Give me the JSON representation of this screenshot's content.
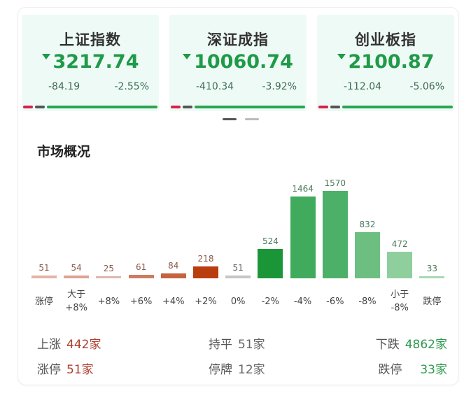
{
  "indices": [
    {
      "name": "上证指数",
      "price": "3217.74",
      "change": "-84.19",
      "change_pct": "-2.55%"
    },
    {
      "name": "深证成指",
      "price": "10060.74",
      "change": "-410.34",
      "change_pct": "-3.92%"
    },
    {
      "name": "创业板指",
      "price": "2100.87",
      "change": "-112.04",
      "change_pct": "-5.06%"
    }
  ],
  "colors": {
    "down_green": "#1f9a48",
    "up_red": "#c0392b",
    "card_bg": "#eefaf6",
    "strip_red": "#d6204a",
    "strip_gray": "#555555",
    "strip_green": "#2aa552"
  },
  "pager": {
    "active": 0,
    "count": 2
  },
  "section": {
    "title": "市场概况"
  },
  "chart_data": {
    "type": "bar",
    "title": "市场概况",
    "xlabel": "",
    "ylabel": "",
    "categories": [
      "涨停",
      "大于 +8%",
      "+8%",
      "+6%",
      "+4%",
      "+2%",
      "0%",
      "-2%",
      "-4%",
      "-6%",
      "-8%",
      "小于 -8%",
      "跌停"
    ],
    "values": [
      51,
      54,
      25,
      61,
      84,
      218,
      51,
      524,
      1464,
      1570,
      832,
      472,
      33
    ],
    "bar_colors": [
      "#e3b4a8",
      "#dca394",
      "#d9b9b0",
      "#cc7d62",
      "#c4633f",
      "#b93d0f",
      "#c6c6c6",
      "#1a9638",
      "#41ab5d",
      "#4db068",
      "#6cbf80",
      "#8fcf9d",
      "#a9d8b4"
    ],
    "ylim": [
      0,
      1570
    ],
    "grid": false,
    "legend": null
  },
  "chart_labels": {
    "values": [
      "51",
      "54",
      "25",
      "61",
      "84",
      "218",
      "51",
      "524",
      "1464",
      "1570",
      "832",
      "472",
      "33"
    ],
    "cat_line1": [
      "涨停",
      "大于",
      "+8%",
      "+6%",
      "+4%",
      "+2%",
      "0%",
      "-2%",
      "-4%",
      "-6%",
      "-8%",
      "小于",
      "跌停"
    ],
    "cat_line2": [
      "",
      "+8%",
      "",
      "",
      "",
      "",
      "",
      "",
      "",
      "",
      "",
      "-8%",
      ""
    ]
  },
  "summary": {
    "rise": {
      "label": "上涨",
      "value": "442家"
    },
    "limit_up": {
      "label": "涨停",
      "value": "51家"
    },
    "flat": {
      "label": "持平",
      "value": "51家"
    },
    "suspended": {
      "label": "停牌",
      "value": "12家"
    },
    "fall": {
      "label": "下跌",
      "value": "4862家"
    },
    "limit_down": {
      "label": "跌停",
      "value": "33家"
    }
  }
}
